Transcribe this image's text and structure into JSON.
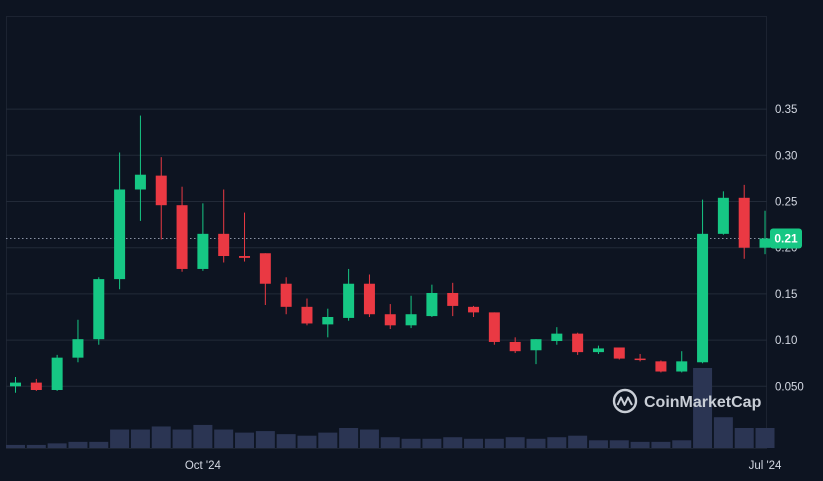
{
  "chart_data": {
    "type": "candlestick",
    "watermark": "CoinMarketCap",
    "current_price_label": "0.21",
    "current_price": 0.21,
    "y_ticks": [
      "0.35",
      "0.30",
      "0.25",
      "0.20",
      "0.15",
      "0.10",
      "0.050"
    ],
    "y_tick_values": [
      0.35,
      0.3,
      0.25,
      0.2,
      0.15,
      0.1,
      0.05
    ],
    "x_ticks": [
      "Oct '24",
      "Jul '24"
    ],
    "x_tick_candle_index": [
      9,
      36
    ],
    "ylim": [
      0.0,
      0.4
    ],
    "grid": true,
    "colors": {
      "background": "#0d1421",
      "grid": "#222a38",
      "up": "#16c784",
      "down": "#ea3943",
      "volume": "#2b3553",
      "text": "#d4d9e3"
    },
    "candles": [
      {
        "o": 0.05,
        "h": 0.06,
        "l": 0.043,
        "c": 0.054
      },
      {
        "o": 0.054,
        "h": 0.058,
        "l": 0.045,
        "c": 0.046
      },
      {
        "o": 0.046,
        "h": 0.084,
        "l": 0.045,
        "c": 0.081
      },
      {
        "o": 0.081,
        "h": 0.122,
        "l": 0.076,
        "c": 0.101
      },
      {
        "o": 0.101,
        "h": 0.168,
        "l": 0.095,
        "c": 0.166
      },
      {
        "o": 0.166,
        "h": 0.303,
        "l": 0.155,
        "c": 0.263
      },
      {
        "o": 0.263,
        "h": 0.343,
        "l": 0.229,
        "c": 0.279
      },
      {
        "o": 0.278,
        "h": 0.298,
        "l": 0.209,
        "c": 0.246
      },
      {
        "o": 0.246,
        "h": 0.266,
        "l": 0.174,
        "c": 0.177
      },
      {
        "o": 0.177,
        "h": 0.248,
        "l": 0.175,
        "c": 0.215
      },
      {
        "o": 0.215,
        "h": 0.263,
        "l": 0.184,
        "c": 0.191
      },
      {
        "o": 0.191,
        "h": 0.238,
        "l": 0.185,
        "c": 0.189
      },
      {
        "o": 0.194,
        "h": 0.194,
        "l": 0.138,
        "c": 0.161
      },
      {
        "o": 0.161,
        "h": 0.168,
        "l": 0.128,
        "c": 0.136
      },
      {
        "o": 0.136,
        "h": 0.145,
        "l": 0.116,
        "c": 0.118
      },
      {
        "o": 0.117,
        "h": 0.134,
        "l": 0.103,
        "c": 0.125
      },
      {
        "o": 0.124,
        "h": 0.177,
        "l": 0.121,
        "c": 0.161
      },
      {
        "o": 0.161,
        "h": 0.171,
        "l": 0.125,
        "c": 0.128
      },
      {
        "o": 0.128,
        "h": 0.139,
        "l": 0.112,
        "c": 0.116
      },
      {
        "o": 0.116,
        "h": 0.148,
        "l": 0.113,
        "c": 0.128
      },
      {
        "o": 0.126,
        "h": 0.16,
        "l": 0.125,
        "c": 0.151
      },
      {
        "o": 0.151,
        "h": 0.162,
        "l": 0.126,
        "c": 0.137
      },
      {
        "o": 0.136,
        "h": 0.137,
        "l": 0.125,
        "c": 0.13
      },
      {
        "o": 0.13,
        "h": 0.13,
        "l": 0.095,
        "c": 0.098
      },
      {
        "o": 0.098,
        "h": 0.103,
        "l": 0.086,
        "c": 0.088
      },
      {
        "o": 0.089,
        "h": 0.101,
        "l": 0.074,
        "c": 0.101
      },
      {
        "o": 0.099,
        "h": 0.114,
        "l": 0.095,
        "c": 0.107
      },
      {
        "o": 0.107,
        "h": 0.108,
        "l": 0.084,
        "c": 0.087
      },
      {
        "o": 0.087,
        "h": 0.094,
        "l": 0.085,
        "c": 0.091
      },
      {
        "o": 0.092,
        "h": 0.092,
        "l": 0.079,
        "c": 0.08
      },
      {
        "o": 0.08,
        "h": 0.085,
        "l": 0.077,
        "c": 0.079
      },
      {
        "o": 0.077,
        "h": 0.078,
        "l": 0.065,
        "c": 0.066
      },
      {
        "o": 0.066,
        "h": 0.088,
        "l": 0.065,
        "c": 0.077
      },
      {
        "o": 0.076,
        "h": 0.252,
        "l": 0.075,
        "c": 0.215
      },
      {
        "o": 0.215,
        "h": 0.261,
        "l": 0.214,
        "c": 0.254
      },
      {
        "o": 0.254,
        "h": 0.268,
        "l": 0.188,
        "c": 0.2
      },
      {
        "o": 0.2,
        "h": 0.24,
        "l": 0.193,
        "c": 0.21
      }
    ],
    "volume": [
      2,
      2,
      3,
      4,
      4,
      12,
      12,
      14,
      12,
      15,
      12,
      10,
      11,
      9,
      8,
      10,
      13,
      12,
      7,
      6,
      6,
      7,
      6,
      6,
      7,
      6,
      7,
      8,
      5,
      5,
      4,
      4,
      5,
      52,
      20,
      13,
      13
    ],
    "volume_max": 52
  }
}
